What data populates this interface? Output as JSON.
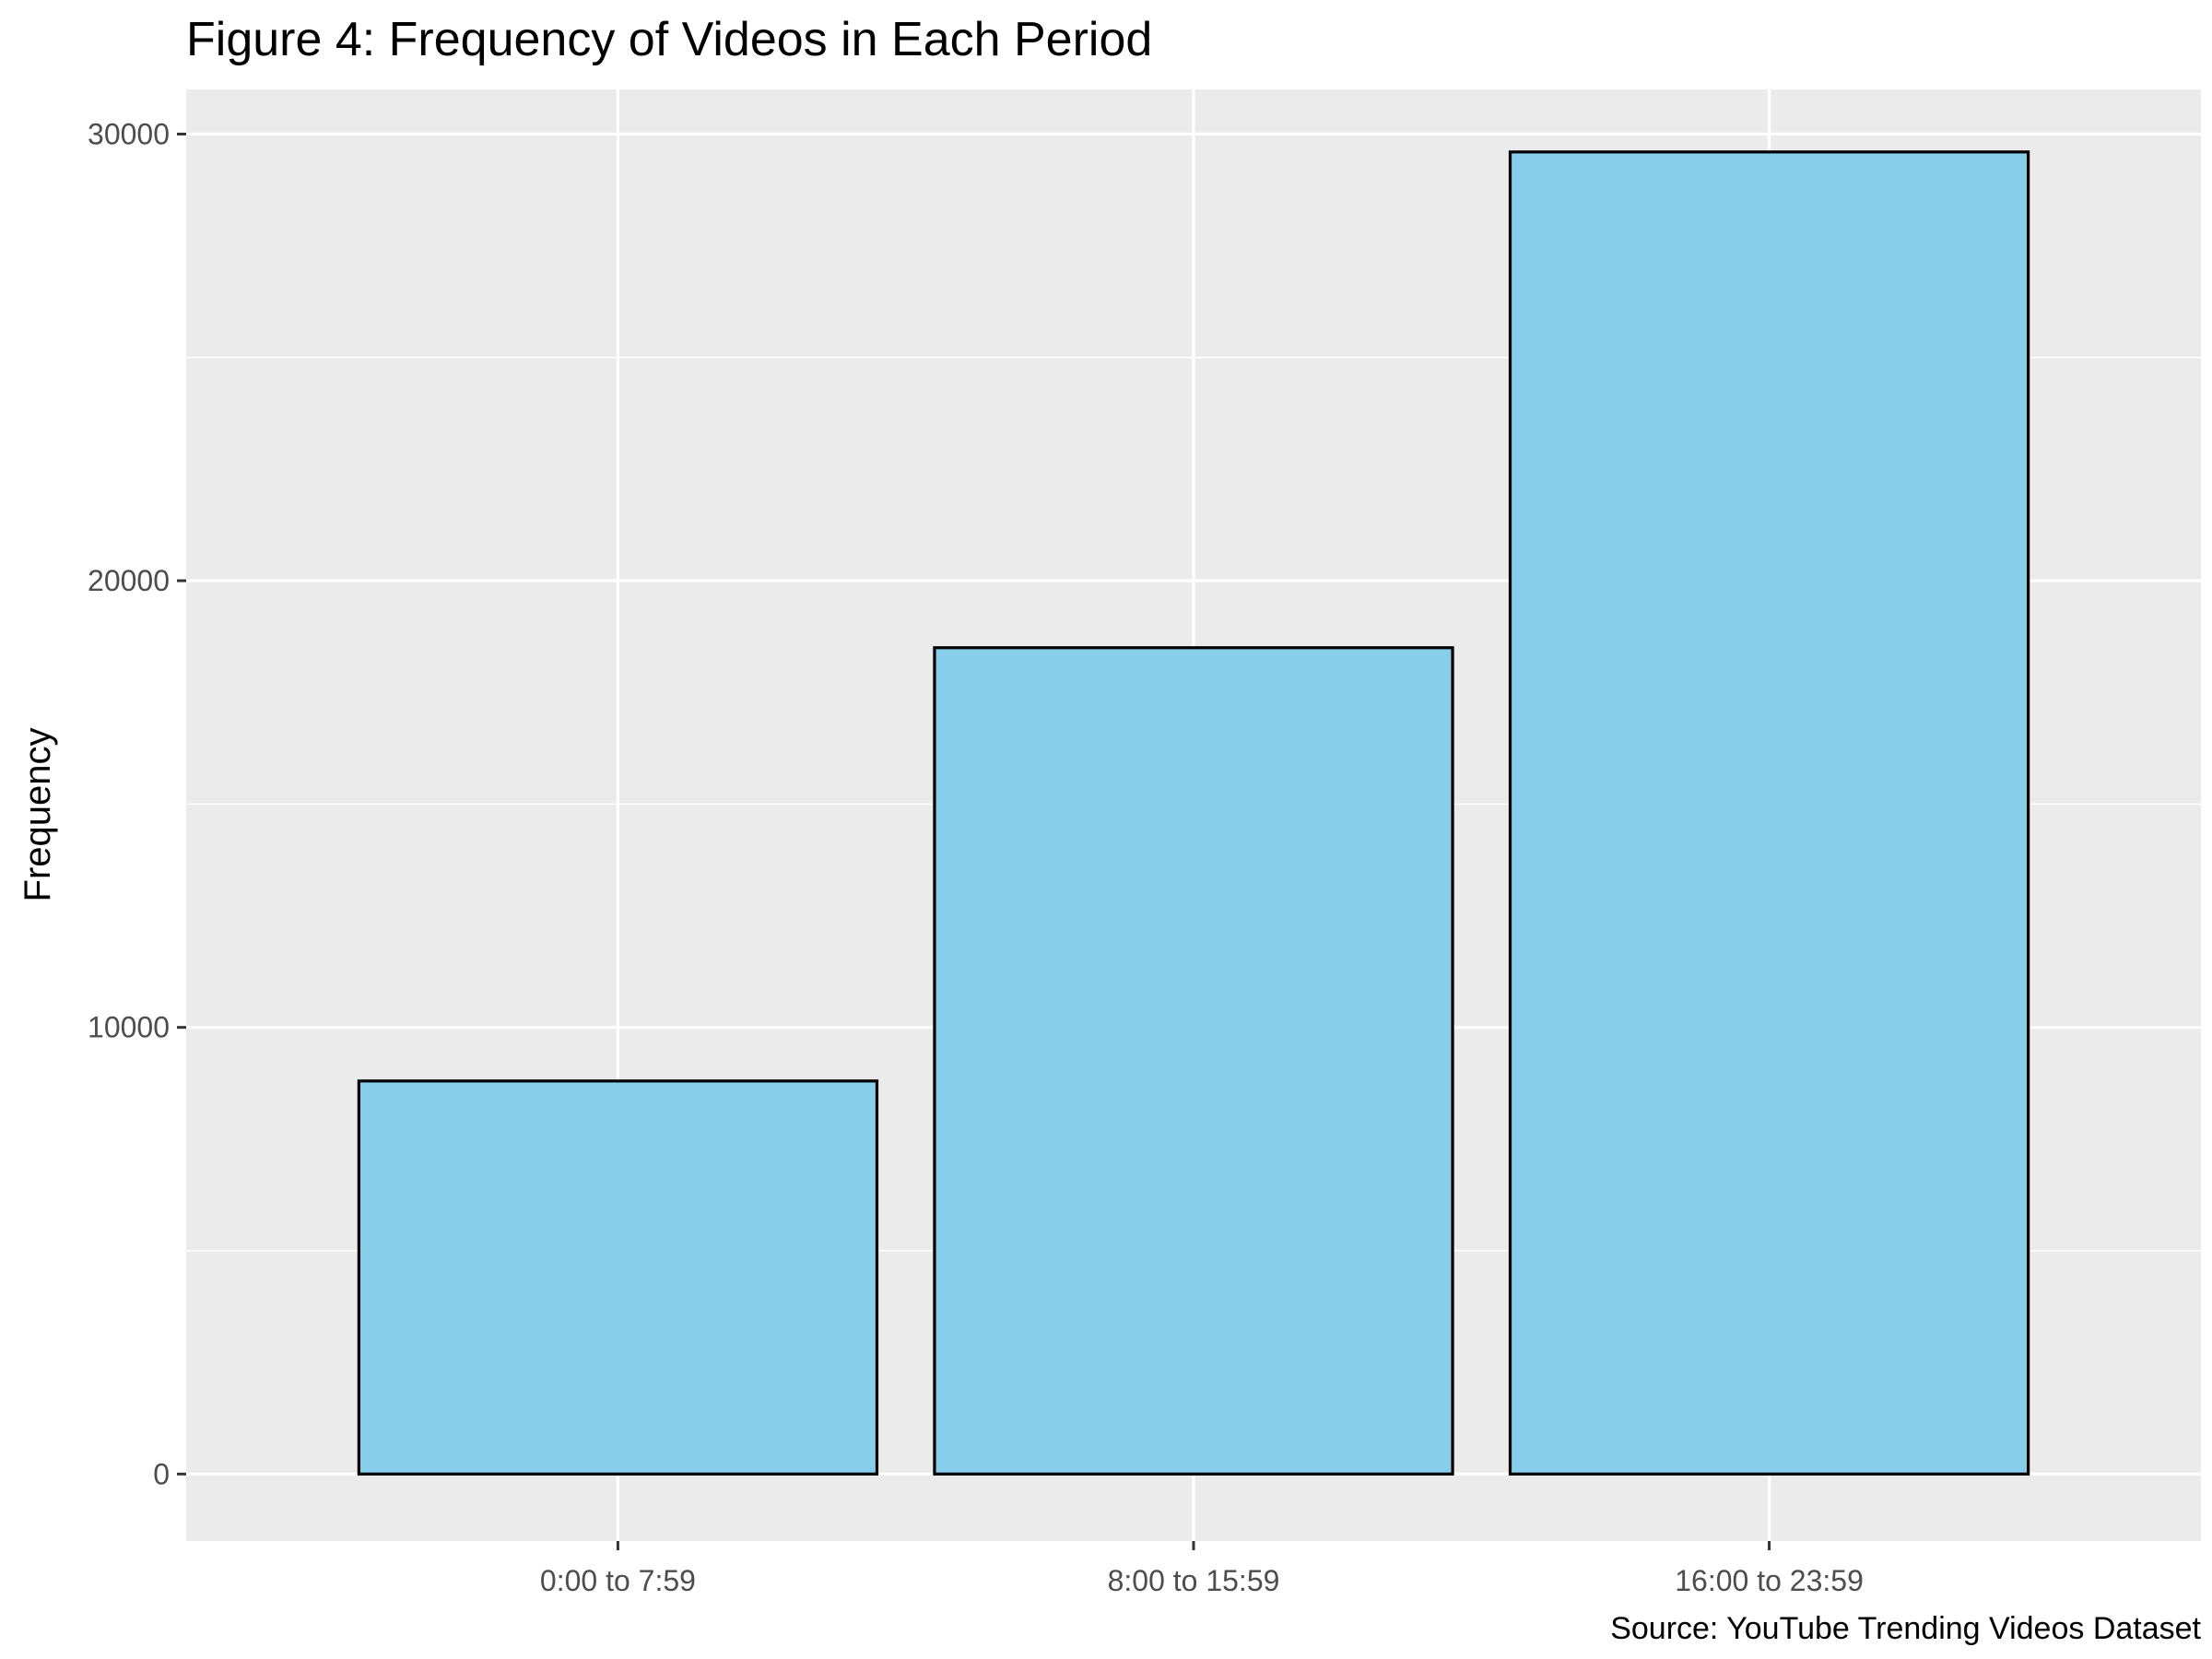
{
  "chart_data": {
    "type": "bar",
    "title": "Figure 4: Frequency of Videos in Each Period",
    "xlabel": "",
    "ylabel": "Frequency",
    "caption": "Source: YouTube Trending Videos Dataset",
    "categories": [
      "0:00 to 7:59",
      "8:00 to 15:59",
      "16:00 to 23:59"
    ],
    "values": [
      8800,
      18500,
      29600
    ],
    "ylim": [
      -1500,
      31000
    ],
    "yticks": [
      0,
      10000,
      20000,
      30000
    ],
    "grid": true,
    "legend": "none",
    "colors": {
      "bar_fill": "#87CEEB",
      "bar_stroke": "#000000",
      "panel_background": "#EBEBEB",
      "grid": "#FFFFFF",
      "tick_text": "#4D4D4D",
      "tick_mark": "#333333"
    }
  }
}
